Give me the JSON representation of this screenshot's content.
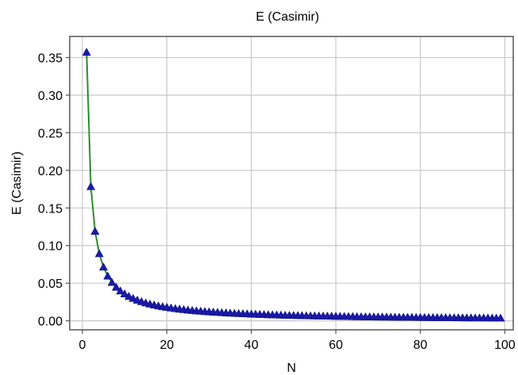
{
  "chart_data": {
    "type": "line",
    "title": "E (Casimir)",
    "xlabel": "N",
    "ylabel": "E (Casimir)",
    "xlim": [
      -3,
      102
    ],
    "ylim": [
      -0.012,
      0.378
    ],
    "x_ticks": [
      0,
      20,
      40,
      60,
      80,
      100
    ],
    "y_ticks": [
      0.0,
      0.05,
      0.1,
      0.15,
      0.2,
      0.25,
      0.3,
      0.35
    ],
    "x_tick_labels": [
      "0",
      "20",
      "40",
      "60",
      "80",
      "100"
    ],
    "y_tick_labels": [
      "0.00",
      "0.05",
      "0.10",
      "0.15",
      "0.20",
      "0.25",
      "0.30",
      "0.35"
    ],
    "grid": true,
    "series": [
      {
        "line_color": "#2e8b2e",
        "marker": "triangle",
        "marker_color": "#1a1aa8",
        "x": [
          1,
          2,
          3,
          4,
          5,
          6,
          7,
          8,
          9,
          10,
          11,
          12,
          13,
          14,
          15,
          16,
          17,
          18,
          19,
          20,
          21,
          22,
          23,
          24,
          25,
          26,
          27,
          28,
          29,
          30,
          31,
          32,
          33,
          34,
          35,
          36,
          37,
          38,
          39,
          40,
          41,
          42,
          43,
          44,
          45,
          46,
          47,
          48,
          49,
          50,
          51,
          52,
          53,
          54,
          55,
          56,
          57,
          58,
          59,
          60,
          61,
          62,
          63,
          64,
          65,
          66,
          67,
          68,
          69,
          70,
          71,
          72,
          73,
          74,
          75,
          76,
          77,
          78,
          79,
          80,
          81,
          82,
          83,
          84,
          85,
          86,
          87,
          88,
          89,
          90,
          91,
          92,
          93,
          94,
          95,
          96,
          97,
          98,
          99
        ],
        "y": [
          0.357,
          0.1785,
          0.119,
          0.0893,
          0.0714,
          0.0595,
          0.051,
          0.0446,
          0.0397,
          0.0357,
          0.0325,
          0.0298,
          0.0275,
          0.0255,
          0.0238,
          0.0223,
          0.021,
          0.0198,
          0.0188,
          0.0179,
          0.017,
          0.0162,
          0.0155,
          0.0149,
          0.0143,
          0.0137,
          0.0132,
          0.0128,
          0.0123,
          0.0119,
          0.0115,
          0.0112,
          0.0108,
          0.0105,
          0.0102,
          0.0099,
          0.0096,
          0.0094,
          0.0092,
          0.0089,
          0.0087,
          0.0085,
          0.0083,
          0.0081,
          0.0079,
          0.0078,
          0.0076,
          0.0074,
          0.0073,
          0.0071,
          0.007,
          0.0069,
          0.0067,
          0.0066,
          0.0065,
          0.0064,
          0.0063,
          0.0062,
          0.0061,
          0.006,
          0.0059,
          0.0058,
          0.0057,
          0.0056,
          0.0055,
          0.0054,
          0.0053,
          0.0053,
          0.0052,
          0.0051,
          0.005,
          0.005,
          0.0049,
          0.0048,
          0.0048,
          0.0047,
          0.0046,
          0.0046,
          0.0045,
          0.0045,
          0.0044,
          0.0044,
          0.0043,
          0.0043,
          0.0042,
          0.0042,
          0.0041,
          0.0041,
          0.004,
          0.004,
          0.0039,
          0.0039,
          0.0038,
          0.0038,
          0.0038,
          0.0037,
          0.0037,
          0.0036,
          0.0036
        ]
      }
    ]
  }
}
